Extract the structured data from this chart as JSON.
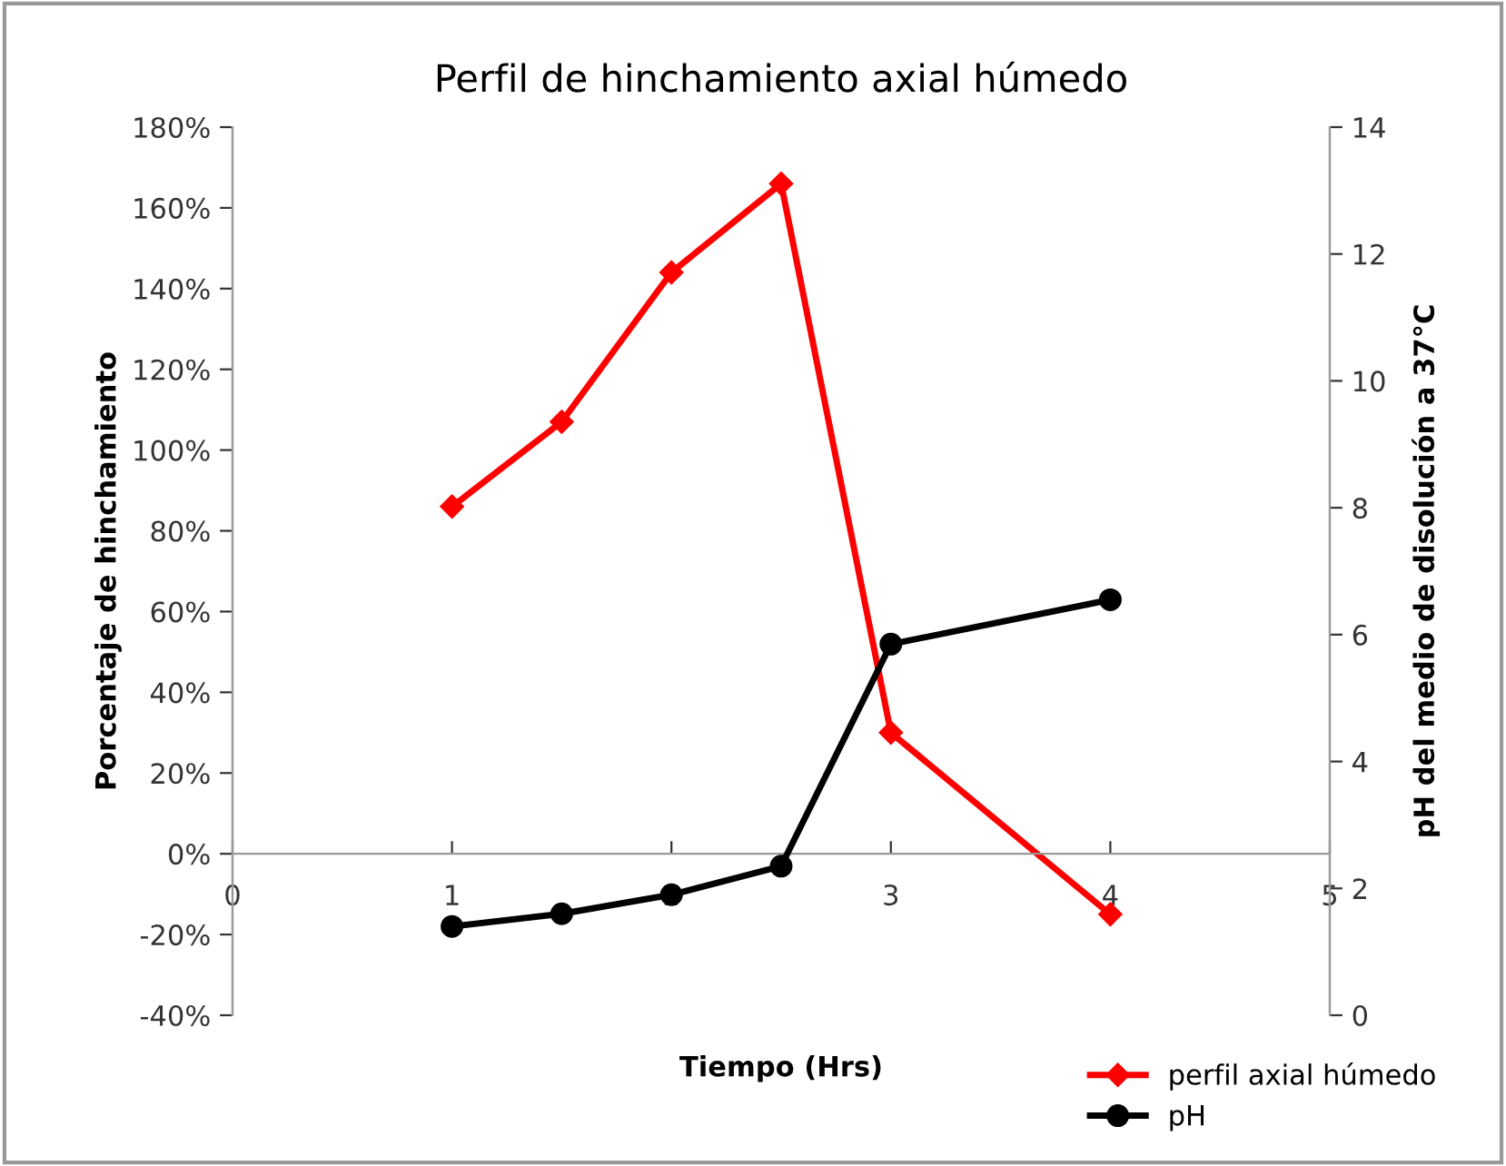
{
  "chart_data": {
    "type": "line",
    "title": "Perfil de hinchamiento axial húmedo",
    "xlabel": "Tiempo (Hrs)",
    "ylabel": "Porcentaje de hinchamiento",
    "y2label": "pH del medio de disolución a 37°C",
    "x": [
      1,
      1.5,
      2,
      2.5,
      3,
      4
    ],
    "series": [
      {
        "name": "perfil axial húmedo",
        "color": "#ff0000",
        "marker": "diamond",
        "values": [
          86,
          107,
          144,
          166,
          30,
          -15
        ]
      },
      {
        "name": "pH",
        "color": "#000000",
        "marker": "circle",
        "axis": "y2",
        "values": [
          1.4,
          1.6,
          1.9,
          2.35,
          5.85,
          6.55
        ]
      }
    ],
    "xlim": [
      0,
      5
    ],
    "xticks": [
      0,
      1,
      2,
      3,
      4,
      5
    ],
    "ylim": [
      -40,
      180
    ],
    "yticks": [
      {
        "value": -40,
        "label": "-40%"
      },
      {
        "value": -20,
        "label": "-20%"
      },
      {
        "value": 0,
        "label": "0%"
      },
      {
        "value": 20,
        "label": "20%"
      },
      {
        "value": 40,
        "label": "40%"
      },
      {
        "value": 60,
        "label": "60%"
      },
      {
        "value": 80,
        "label": "80%"
      },
      {
        "value": 100,
        "label": "100%"
      },
      {
        "value": 120,
        "label": "120%"
      },
      {
        "value": 140,
        "label": "140%"
      },
      {
        "value": 160,
        "label": "160%"
      },
      {
        "value": 180,
        "label": "180%"
      }
    ],
    "y2lim": [
      0,
      14
    ],
    "y2ticks": [
      0,
      2,
      4,
      6,
      8,
      10,
      12,
      14
    ],
    "grid": false,
    "legend": "bottom right",
    "line_style": "solid"
  }
}
